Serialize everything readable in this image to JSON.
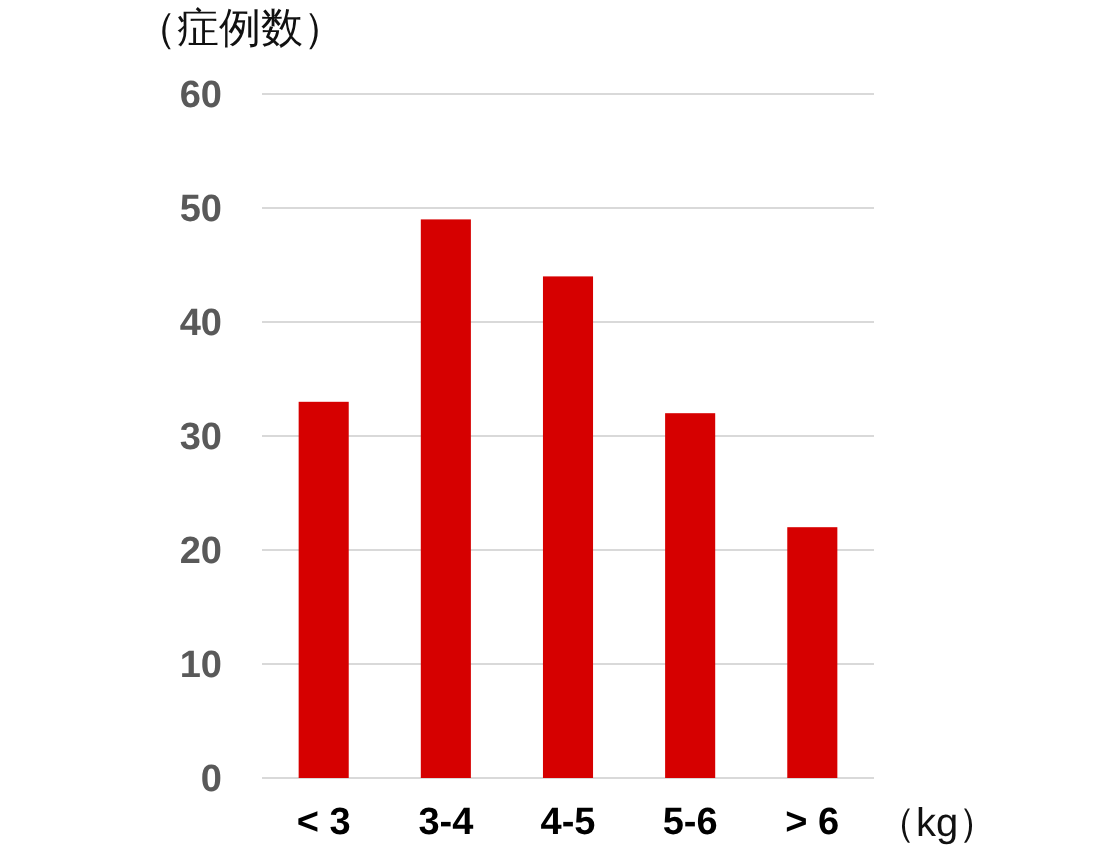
{
  "chart_data": {
    "type": "bar",
    "ylabel": "（症例数）",
    "xlabel": "（kg）",
    "categories": [
      "< 3",
      "3-4",
      "4-5",
      "5-6",
      "> 6"
    ],
    "values": [
      33,
      49,
      44,
      32,
      22
    ],
    "color": "#d60000",
    "ylim": [
      0,
      60
    ],
    "yticks": [
      0,
      10,
      20,
      30,
      40,
      50,
      60
    ],
    "grid": "y"
  }
}
